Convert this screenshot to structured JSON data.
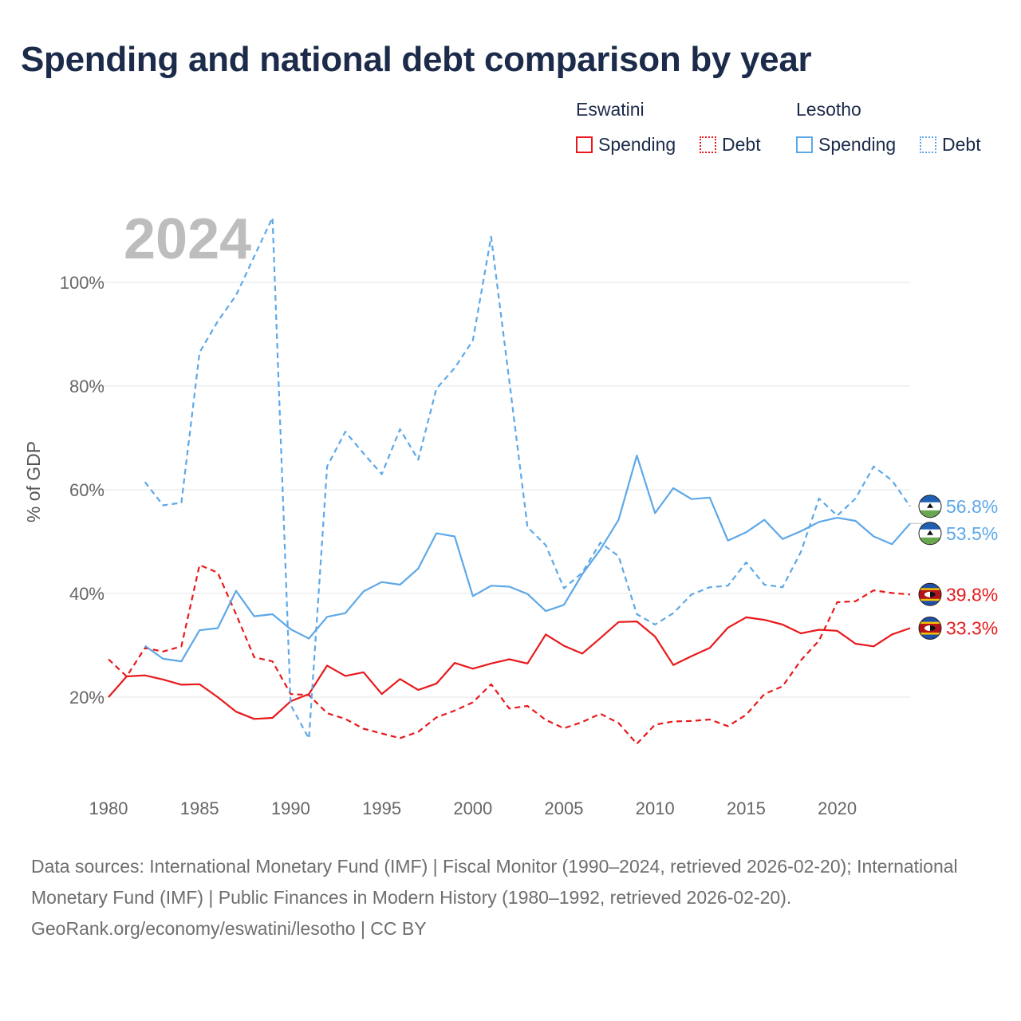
{
  "title": "Spending and national debt comparison by year",
  "legend": {
    "groups": [
      {
        "country": "Eswatini",
        "color": "#e8191c",
        "spending_label": "Spending",
        "debt_label": "Debt"
      },
      {
        "country": "Lesotho",
        "color": "#5da8e8",
        "spending_label": "Spending",
        "debt_label": "Debt"
      }
    ]
  },
  "chart_data": {
    "type": "line",
    "year_label": "2024",
    "ylabel": "% of GDP",
    "ylim": [
      2,
      112
    ],
    "xlim": [
      1980,
      2024
    ],
    "y_ticks": [
      20,
      40,
      60,
      80,
      100
    ],
    "y_tick_labels": [
      "20%",
      "40%",
      "60%",
      "80%",
      "100%"
    ],
    "x_ticks": [
      1980,
      1985,
      1990,
      1995,
      2000,
      2005,
      2010,
      2015,
      2020
    ],
    "x_tick_labels": [
      "1980",
      "1985",
      "1990",
      "1995",
      "2000",
      "2005",
      "2010",
      "2015",
      "2020"
    ],
    "series": [
      {
        "name": "Eswatini Spending",
        "country": "Eswatini",
        "metric": "Spending",
        "color": "#e8191c",
        "dashed": false,
        "end_label": "33.3%",
        "flag": "eswatini",
        "points": [
          [
            1980,
            20
          ],
          [
            1981,
            24
          ],
          [
            1982,
            24.2
          ],
          [
            1983,
            23.4
          ],
          [
            1984,
            22.4
          ],
          [
            1985,
            22.5
          ],
          [
            1986,
            20
          ],
          [
            1987,
            17.2
          ],
          [
            1988,
            15.8
          ],
          [
            1989,
            16
          ],
          [
            1990,
            19.2
          ],
          [
            1991,
            20.6
          ],
          [
            1992,
            26.1
          ],
          [
            1993,
            24.1
          ],
          [
            1994,
            24.8
          ],
          [
            1995,
            20.6
          ],
          [
            1996,
            23.5
          ],
          [
            1997,
            21.4
          ],
          [
            1998,
            22.6
          ],
          [
            1999,
            26.6
          ],
          [
            2000,
            25.5
          ],
          [
            2001,
            26.5
          ],
          [
            2002,
            27.3
          ],
          [
            2003,
            26.5
          ],
          [
            2004,
            32.1
          ],
          [
            2005,
            29.9
          ],
          [
            2006,
            28.4
          ],
          [
            2007,
            31.4
          ],
          [
            2008,
            34.5
          ],
          [
            2009,
            34.6
          ],
          [
            2010,
            31.7
          ],
          [
            2011,
            26.2
          ],
          [
            2012,
            27.9
          ],
          [
            2013,
            29.5
          ],
          [
            2014,
            33.4
          ],
          [
            2015,
            35.4
          ],
          [
            2016,
            34.9
          ],
          [
            2017,
            34
          ],
          [
            2018,
            32.3
          ],
          [
            2019,
            33
          ],
          [
            2020,
            32.8
          ],
          [
            2021,
            30.3
          ],
          [
            2022,
            29.8
          ],
          [
            2023,
            32.1
          ],
          [
            2024,
            33.3
          ]
        ]
      },
      {
        "name": "Eswatini Debt",
        "country": "Eswatini",
        "metric": "Debt",
        "color": "#e8191c",
        "dashed": true,
        "end_label": "39.8%",
        "flag": "eswatini",
        "points": [
          [
            1980,
            27.3
          ],
          [
            1981,
            24
          ],
          [
            1982,
            29.5
          ],
          [
            1983,
            28.8
          ],
          [
            1984,
            29.8
          ],
          [
            1985,
            45.5
          ],
          [
            1986,
            44
          ],
          [
            1987,
            36
          ],
          [
            1988,
            27.7
          ],
          [
            1989,
            26.9
          ],
          [
            1990,
            20.6
          ],
          [
            1991,
            20.4
          ],
          [
            1992,
            16.9
          ],
          [
            1993,
            15.8
          ],
          [
            1994,
            13.9
          ],
          [
            1995,
            13
          ],
          [
            1996,
            12.1
          ],
          [
            1997,
            13.3
          ],
          [
            1998,
            16.1
          ],
          [
            1999,
            17.4
          ],
          [
            2000,
            19
          ],
          [
            2001,
            22.5
          ],
          [
            2002,
            17.8
          ],
          [
            2003,
            18.3
          ],
          [
            2004,
            15.6
          ],
          [
            2005,
            14
          ],
          [
            2006,
            15.2
          ],
          [
            2007,
            16.8
          ],
          [
            2008,
            15
          ],
          [
            2009,
            11
          ],
          [
            2010,
            14.7
          ],
          [
            2011,
            15.3
          ],
          [
            2012,
            15.4
          ],
          [
            2013,
            15.7
          ],
          [
            2014,
            14.4
          ],
          [
            2015,
            16.6
          ],
          [
            2016,
            20.6
          ],
          [
            2017,
            22.1
          ],
          [
            2018,
            27.1
          ],
          [
            2019,
            30.9
          ],
          [
            2020,
            38.3
          ],
          [
            2021,
            38.5
          ],
          [
            2022,
            40.6
          ],
          [
            2023,
            40.1
          ],
          [
            2024,
            39.8
          ]
        ]
      },
      {
        "name": "Lesotho Spending",
        "country": "Lesotho",
        "metric": "Spending",
        "color": "#5da8e8",
        "dashed": false,
        "end_label": "53.5%",
        "flag": "lesotho",
        "points": [
          [
            1982,
            29.9
          ],
          [
            1983,
            27.4
          ],
          [
            1984,
            26.9
          ],
          [
            1985,
            32.9
          ],
          [
            1986,
            33.3
          ],
          [
            1987,
            40.5
          ],
          [
            1988,
            35.6
          ],
          [
            1989,
            36
          ],
          [
            1990,
            33.1
          ],
          [
            1991,
            31.3
          ],
          [
            1992,
            35.5
          ],
          [
            1993,
            36.2
          ],
          [
            1994,
            40.4
          ],
          [
            1995,
            42.2
          ],
          [
            1996,
            41.7
          ],
          [
            1997,
            44.8
          ],
          [
            1998,
            51.6
          ],
          [
            1999,
            51
          ],
          [
            2000,
            39.5
          ],
          [
            2001,
            41.5
          ],
          [
            2002,
            41.3
          ],
          [
            2003,
            39.9
          ],
          [
            2004,
            36.6
          ],
          [
            2005,
            37.8
          ],
          [
            2006,
            43.7
          ],
          [
            2007,
            48.5
          ],
          [
            2008,
            54.2
          ],
          [
            2009,
            66.6
          ],
          [
            2010,
            55.5
          ],
          [
            2011,
            60.3
          ],
          [
            2012,
            58.2
          ],
          [
            2013,
            58.5
          ],
          [
            2014,
            50.2
          ],
          [
            2015,
            51.8
          ],
          [
            2016,
            54.2
          ],
          [
            2017,
            50.5
          ],
          [
            2018,
            52
          ],
          [
            2019,
            53.8
          ],
          [
            2020,
            54.6
          ],
          [
            2021,
            54
          ],
          [
            2022,
            51
          ],
          [
            2023,
            49.5
          ],
          [
            2024,
            53.5
          ]
        ]
      },
      {
        "name": "Lesotho Debt",
        "country": "Lesotho",
        "metric": "Debt",
        "color": "#5da8e8",
        "dashed": true,
        "end_label": "56.8%",
        "flag": "lesotho",
        "points": [
          [
            1982,
            61.5
          ],
          [
            1983,
            57
          ],
          [
            1984,
            57.5
          ],
          [
            1985,
            86.5
          ],
          [
            1986,
            92.5
          ],
          [
            1987,
            97.5
          ],
          [
            1988,
            105
          ],
          [
            1989,
            112.5
          ],
          [
            1990,
            18.5
          ],
          [
            1991,
            12
          ],
          [
            1992,
            64.5
          ],
          [
            1993,
            71.2
          ],
          [
            1994,
            67
          ],
          [
            1995,
            63
          ],
          [
            1996,
            71.7
          ],
          [
            1997,
            65.8
          ],
          [
            1998,
            79.5
          ],
          [
            1999,
            83.5
          ],
          [
            2000,
            88.8
          ],
          [
            2001,
            108.8
          ],
          [
            2002,
            81
          ],
          [
            2003,
            52.8
          ],
          [
            2004,
            49.3
          ],
          [
            2005,
            41
          ],
          [
            2006,
            44
          ],
          [
            2007,
            49.8
          ],
          [
            2008,
            47.2
          ],
          [
            2009,
            36
          ],
          [
            2010,
            34
          ],
          [
            2011,
            36.2
          ],
          [
            2012,
            39.8
          ],
          [
            2013,
            41.2
          ],
          [
            2014,
            41.5
          ],
          [
            2015,
            46
          ],
          [
            2016,
            41.7
          ],
          [
            2017,
            41.2
          ],
          [
            2018,
            48
          ],
          [
            2019,
            58.3
          ],
          [
            2020,
            55
          ],
          [
            2021,
            58.3
          ],
          [
            2022,
            64.5
          ],
          [
            2023,
            61.8
          ],
          [
            2024,
            56.8
          ]
        ]
      }
    ]
  },
  "footer": {
    "sources": "Data sources: International Monetary Fund (IMF) | Fiscal Monitor (1990–2024, retrieved 2026-02-20); International Monetary Fund (IMF) | Public Finances in Modern History (1980–1992, retrieved 2026-02-20).",
    "credit": "GeoRank.org/economy/eswatini/lesotho | CC BY"
  }
}
